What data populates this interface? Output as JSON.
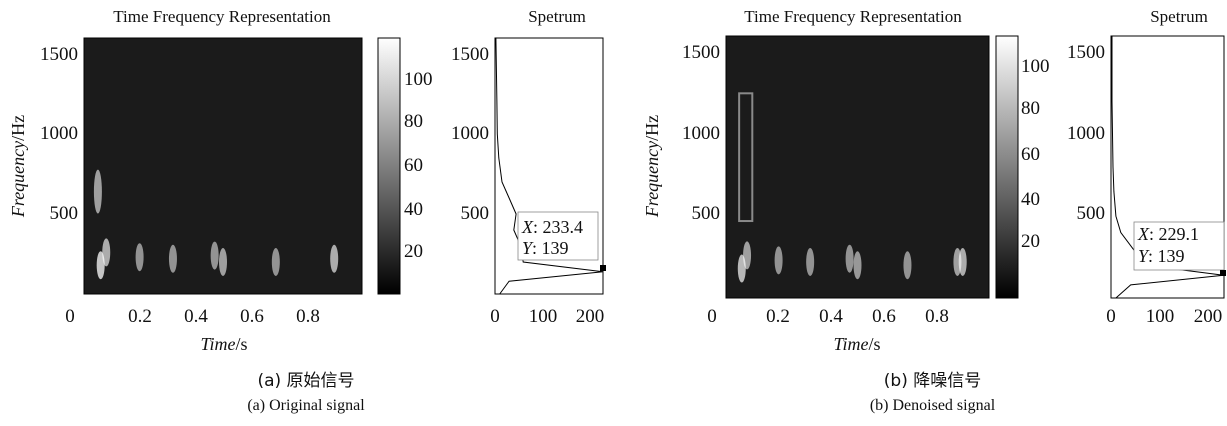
{
  "panels": [
    {
      "id": "a",
      "caption_cn": "(a) 原始信号",
      "caption_en": "(a) Original signal",
      "tfr": {
        "title": "Time Frequency Representation",
        "xlabel_italic": "Time",
        "xlabel_unit": "/s",
        "ylabel_italic": "Frequency",
        "ylabel_unit": "/Hz",
        "xticks": [
          "0",
          "0.2",
          "0.4",
          "0.6",
          "0.8"
        ],
        "yticks": [
          "500",
          "1000",
          "1500"
        ]
      },
      "colorbar": {
        "ticks": [
          "20",
          "40",
          "60",
          "80",
          "100"
        ]
      },
      "spectrum": {
        "title": "Spetrum",
        "xticks": [
          "0",
          "100",
          "200"
        ],
        "yticks": [
          "500",
          "1000",
          "1500"
        ],
        "datatip_x_label": "X",
        "datatip_x_value": ": 233.4",
        "datatip_y_label": "Y",
        "datatip_y_value": ": 139"
      }
    },
    {
      "id": "b",
      "caption_cn": "(b) 降噪信号",
      "caption_en": "(b) Denoised signal",
      "tfr": {
        "title": "Time Frequency Representation",
        "xlabel_italic": "Time",
        "xlabel_unit": "/s",
        "ylabel_italic": "Frequency",
        "ylabel_unit": "/Hz",
        "xticks": [
          "0",
          "0.2",
          "0.4",
          "0.6",
          "0.8"
        ],
        "yticks": [
          "500",
          "1000",
          "1500"
        ]
      },
      "colorbar": {
        "ticks": [
          "20",
          "40",
          "60",
          "80",
          "100"
        ]
      },
      "spectrum": {
        "title": "Spetrum",
        "xticks": [
          "0",
          "100",
          "200"
        ],
        "yticks": [
          "500",
          "1000",
          "1500"
        ],
        "datatip_x_label": "X",
        "datatip_x_value": ": 229.1",
        "datatip_y_label": "Y",
        "datatip_y_value": ": 139"
      }
    }
  ],
  "chart_data": [
    {
      "type": "heatmap",
      "title": "Time Frequency Representation",
      "xlabel": "Time/s",
      "ylabel": "Frequency/Hz",
      "xlim": [
        0,
        1
      ],
      "ylim": [
        0,
        1600
      ],
      "color_range": [
        0,
        115
      ],
      "colormap": "gray",
      "hotspots": [
        {
          "t": 0.05,
          "f": 640,
          "intensity": 0.6
        },
        {
          "t": 0.06,
          "f": 180,
          "intensity": 0.9
        },
        {
          "t": 0.08,
          "f": 260,
          "intensity": 0.7
        },
        {
          "t": 0.2,
          "f": 230,
          "intensity": 0.5
        },
        {
          "t": 0.32,
          "f": 220,
          "intensity": 0.5
        },
        {
          "t": 0.47,
          "f": 240,
          "intensity": 0.5
        },
        {
          "t": 0.5,
          "f": 200,
          "intensity": 0.6
        },
        {
          "t": 0.69,
          "f": 200,
          "intensity": 0.5
        },
        {
          "t": 0.9,
          "f": 220,
          "intensity": 0.7
        }
      ]
    },
    {
      "type": "line",
      "title": "Spetrum",
      "xlim": [
        0,
        230
      ],
      "ylim": [
        0,
        1600
      ],
      "peak": {
        "x": 233.4,
        "y": 139
      },
      "spectrum_profile": [
        {
          "f": 1600,
          "amp": 2
        },
        {
          "f": 1400,
          "amp": 3
        },
        {
          "f": 1200,
          "amp": 4
        },
        {
          "f": 1000,
          "amp": 5
        },
        {
          "f": 850,
          "amp": 8
        },
        {
          "f": 700,
          "amp": 15
        },
        {
          "f": 600,
          "amp": 30
        },
        {
          "f": 500,
          "amp": 45
        },
        {
          "f": 400,
          "amp": 40
        },
        {
          "f": 300,
          "amp": 55
        },
        {
          "f": 200,
          "amp": 60
        },
        {
          "f": 139,
          "amp": 233.4
        },
        {
          "f": 80,
          "amp": 30
        },
        {
          "f": 0,
          "amp": 10
        }
      ]
    },
    {
      "type": "heatmap",
      "title": "Time Frequency Representation",
      "xlabel": "Time/s",
      "ylabel": "Frequency/Hz",
      "xlim": [
        0,
        1
      ],
      "ylim": [
        0,
        1600
      ],
      "color_range": [
        0,
        110
      ],
      "colormap": "gray",
      "highlight_box": {
        "t": [
          0.05,
          0.1
        ],
        "f": [
          470,
          1250
        ]
      },
      "hotspots": [
        {
          "t": 0.06,
          "f": 180,
          "intensity": 0.8
        },
        {
          "t": 0.08,
          "f": 260,
          "intensity": 0.6
        },
        {
          "t": 0.2,
          "f": 230,
          "intensity": 0.5
        },
        {
          "t": 0.32,
          "f": 220,
          "intensity": 0.5
        },
        {
          "t": 0.47,
          "f": 240,
          "intensity": 0.5
        },
        {
          "t": 0.5,
          "f": 200,
          "intensity": 0.55
        },
        {
          "t": 0.69,
          "f": 200,
          "intensity": 0.5
        },
        {
          "t": 0.88,
          "f": 220,
          "intensity": 0.6
        },
        {
          "t": 0.9,
          "f": 220,
          "intensity": 0.7
        }
      ]
    },
    {
      "type": "line",
      "title": "Spetrum",
      "xlim": [
        0,
        230
      ],
      "ylim": [
        0,
        1600
      ],
      "peak": {
        "x": 229.1,
        "y": 139
      },
      "spectrum_profile": [
        {
          "f": 1600,
          "amp": 2
        },
        {
          "f": 1400,
          "amp": 2
        },
        {
          "f": 1200,
          "amp": 2
        },
        {
          "f": 1000,
          "amp": 3
        },
        {
          "f": 800,
          "amp": 4
        },
        {
          "f": 650,
          "amp": 6
        },
        {
          "f": 500,
          "amp": 10
        },
        {
          "f": 400,
          "amp": 20
        },
        {
          "f": 300,
          "amp": 45
        },
        {
          "f": 200,
          "amp": 70
        },
        {
          "f": 139,
          "amp": 229.1
        },
        {
          "f": 80,
          "amp": 40
        },
        {
          "f": 0,
          "amp": 10
        }
      ]
    }
  ]
}
